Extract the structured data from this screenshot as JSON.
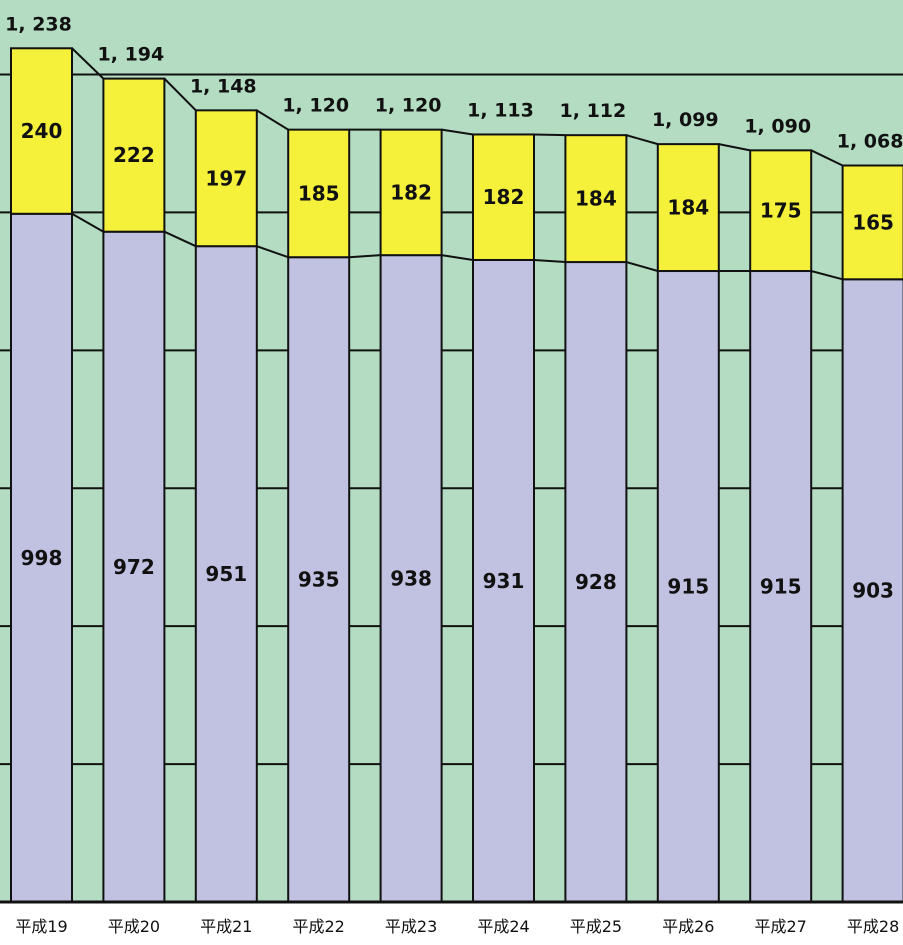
{
  "chart_data": {
    "type": "bar",
    "stacked": true,
    "categories": [
      "平成19",
      "平成20",
      "平成21",
      "平成22",
      "平成23",
      "平成24",
      "平成25",
      "平成26",
      "平成27",
      "平成28"
    ],
    "series": [
      {
        "values": [
          998,
          972,
          951,
          935,
          938,
          931,
          928,
          915,
          915,
          903
        ]
      },
      {
        "values": [
          240,
          222,
          197,
          185,
          182,
          182,
          184,
          184,
          175,
          165
        ]
      }
    ],
    "totals": [
      "1, 238",
      "1, 194",
      "1, 148",
      "1, 120",
      "1, 120",
      "1, 113",
      "1, 112",
      "1, 099",
      "1, 090",
      "1, 068"
    ],
    "ylim": [
      0,
      1250
    ],
    "grid": true,
    "connector_lines": true,
    "colors": {
      "background": "#b3dcc2",
      "lower_series": "#c1c1e2",
      "upper_series": "#f5f03a",
      "outline": "#111111"
    }
  }
}
